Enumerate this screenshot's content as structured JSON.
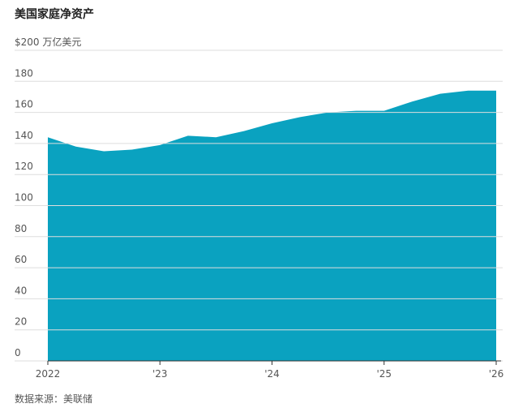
{
  "chart_data": {
    "type": "area",
    "title": "美国家庭净资产",
    "source": "数据来源：美联储",
    "color": "#0aa2c0",
    "x": [
      2022,
      2022.25,
      2022.5,
      2022.75,
      2023,
      2023.25,
      2023.5,
      2023.75,
      2024,
      2024.25,
      2024.5,
      2024.75,
      2025,
      2025.25,
      2025.5,
      2025.75,
      2026
    ],
    "values": [
      144,
      138,
      135,
      136,
      139,
      145,
      144,
      148,
      153,
      157,
      160,
      161,
      161,
      167,
      172,
      174,
      174
    ],
    "xlim": [
      2022,
      2026
    ],
    "xticks": [
      {
        "value": 2022,
        "label": "2022"
      },
      {
        "value": 2023,
        "label": "'23"
      },
      {
        "value": 2024,
        "label": "'24"
      },
      {
        "value": 2025,
        "label": "'25"
      },
      {
        "value": 2026,
        "label": "'26"
      }
    ],
    "ylim": [
      0,
      200
    ],
    "yticks": [
      0,
      20,
      40,
      60,
      80,
      100,
      120,
      140,
      160,
      180,
      {
        "value": 200,
        "label": "$200 万亿美元"
      }
    ],
    "grid": true
  }
}
